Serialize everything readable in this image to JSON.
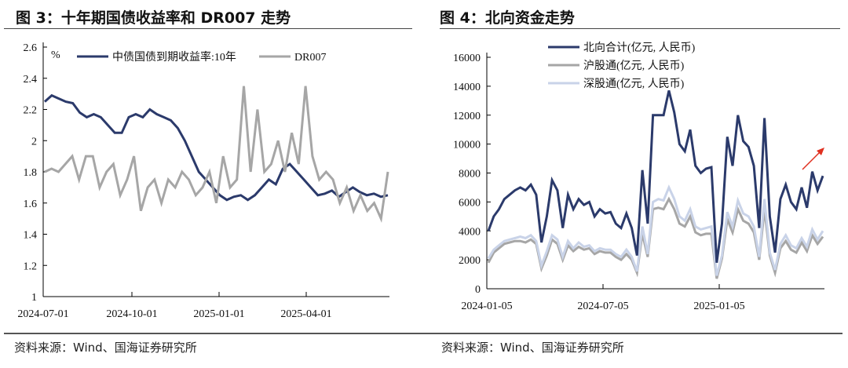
{
  "left": {
    "title": "图 3：十年期国债收益率和 DR007 走势",
    "source": "资料来源：Wind、国海证券研究所"
  },
  "right": {
    "title": "图 4：北向资金走势",
    "source": "资料来源：Wind、国海证券研究所"
  },
  "chart_data": [
    {
      "type": "line",
      "title": "十年期国债收益率和 DR007 走势",
      "ylabel": "%",
      "ylim": [
        1,
        2.6
      ],
      "yticks": [
        "2.6",
        "2.4",
        "2.2",
        "2",
        "1.8",
        "1.6",
        "1.4",
        "1.2",
        "1"
      ],
      "xticks": [
        "2024-07-01",
        "2024-10-01",
        "2025-01-01",
        "2025-04-01"
      ],
      "x_range": [
        "2024-07-01",
        "2025-07-15"
      ],
      "legend": "top",
      "series": [
        {
          "name": "中债国债到期收益率:10年",
          "color": "#2b3a6b",
          "values": [
            2.25,
            2.29,
            2.27,
            2.25,
            2.24,
            2.18,
            2.15,
            2.17,
            2.15,
            2.1,
            2.05,
            2.05,
            2.15,
            2.17,
            2.15,
            2.2,
            2.17,
            2.15,
            2.13,
            2.08,
            2.0,
            1.9,
            1.8,
            1.75,
            1.7,
            1.65,
            1.62,
            1.64,
            1.65,
            1.62,
            1.65,
            1.7,
            1.75,
            1.72,
            1.82,
            1.85,
            1.8,
            1.75,
            1.7,
            1.65,
            1.66,
            1.68,
            1.64,
            1.67,
            1.7,
            1.67,
            1.65,
            1.66,
            1.64,
            1.65
          ]
        },
        {
          "name": "DR007",
          "color": "#a6a6a6",
          "values": [
            1.8,
            1.82,
            1.8,
            1.85,
            1.9,
            1.75,
            1.9,
            1.9,
            1.7,
            1.8,
            1.85,
            1.65,
            1.75,
            1.9,
            1.55,
            1.7,
            1.75,
            1.6,
            1.75,
            1.7,
            1.8,
            1.75,
            1.65,
            1.7,
            1.8,
            1.6,
            1.9,
            1.7,
            1.75,
            2.35,
            1.8,
            2.2,
            1.8,
            1.85,
            2.0,
            1.8,
            2.05,
            1.85,
            2.35,
            1.9,
            1.75,
            1.8,
            1.75,
            1.6,
            1.7,
            1.55,
            1.65,
            1.55,
            1.6,
            1.5,
            1.8
          ]
        }
      ]
    },
    {
      "type": "line",
      "title": "北向资金走势",
      "ylim": [
        0,
        16000
      ],
      "yticks": [
        "16000",
        "14000",
        "12000",
        "10000",
        "8000",
        "6000",
        "4000",
        "2000",
        "0"
      ],
      "xticks": [
        "2024-01-05",
        "2024-07-05",
        "2025-01-05"
      ],
      "x_range": [
        "2024-01-05",
        "2025-06-01"
      ],
      "legend": "top-left",
      "series": [
        {
          "name": "北向合计(亿元, 人民币)",
          "color": "#2b3a6b",
          "values": [
            4000,
            5000,
            5500,
            6200,
            6500,
            6800,
            7000,
            6800,
            7200,
            6500,
            3200,
            5000,
            7500,
            6800,
            4200,
            6500,
            5500,
            6200,
            5800,
            6000,
            5000,
            5500,
            5200,
            5300,
            4500,
            4200,
            5200,
            4200,
            2300,
            8200,
            4500,
            12000,
            12000,
            12000,
            13700,
            12200,
            10000,
            9500,
            11000,
            8500,
            8000,
            8300,
            8400,
            1800,
            4500,
            10500,
            8500,
            12000,
            10200,
            9800,
            8500,
            4200,
            11800,
            5000,
            2500,
            6200,
            7200,
            6000,
            5500,
            7000,
            5600,
            8100,
            6800,
            7800
          ]
        },
        {
          "name": "沪股通(亿元, 人民币)",
          "color": "#a6a6a6",
          "values": [
            1800,
            2500,
            2800,
            3100,
            3200,
            3300,
            3300,
            3200,
            3400,
            3100,
            1400,
            2300,
            3400,
            3100,
            2000,
            3000,
            2600,
            2900,
            2700,
            2800,
            2400,
            2600,
            2500,
            2500,
            2200,
            2000,
            2400,
            2000,
            1100,
            3800,
            2200,
            5500,
            5600,
            5500,
            6200,
            5500,
            4500,
            4300,
            5000,
            3900,
            3700,
            3800,
            3800,
            700,
            2100,
            4800,
            3900,
            5500,
            4700,
            4500,
            3900,
            2000,
            5500,
            2300,
            1100,
            2800,
            3300,
            2700,
            2500,
            3200,
            2600,
            3700,
            3100,
            3600
          ]
        },
        {
          "name": "深股通(亿元, 人民币)",
          "color": "#c9d3e8",
          "values": [
            2100,
            2700,
            3000,
            3300,
            3400,
            3500,
            3600,
            3500,
            3700,
            3300,
            1600,
            2600,
            3700,
            3400,
            2200,
            3300,
            2800,
            3200,
            2900,
            3000,
            2600,
            2800,
            2700,
            2700,
            2400,
            2200,
            2700,
            2200,
            1200,
            4300,
            2400,
            6000,
            6200,
            6100,
            7000,
            6200,
            5000,
            4700,
            5500,
            4300,
            4100,
            4200,
            4300,
            900,
            2300,
            5300,
            4300,
            6100,
            5200,
            5000,
            4300,
            2200,
            6200,
            2500,
            1300,
            3100,
            3700,
            3000,
            2800,
            3500,
            2900,
            4100,
            3400,
            4000
          ]
        }
      ]
    }
  ]
}
